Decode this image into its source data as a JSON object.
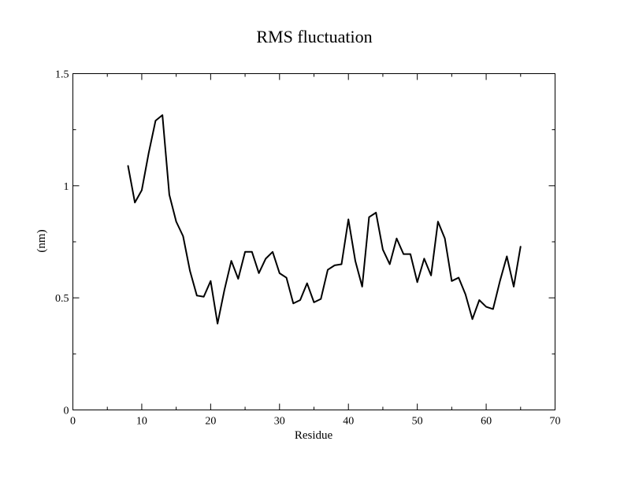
{
  "chart_data": {
    "type": "line",
    "title": "RMS fluctuation",
    "xlabel": "Residue",
    "ylabel": "(nm)",
    "xlim": [
      0,
      70
    ],
    "ylim": [
      0,
      1.5
    ],
    "x_major_ticks": [
      0,
      10,
      20,
      30,
      40,
      50,
      60,
      70
    ],
    "x_tick_labels": [
      "0",
      "10",
      "20",
      "30",
      "40",
      "50",
      "60",
      "70"
    ],
    "x_minor_ticks": [
      5,
      15,
      25,
      35,
      45,
      55,
      65
    ],
    "y_major_ticks": [
      0,
      0.5,
      1,
      1.5
    ],
    "y_tick_labels": [
      "0",
      "0.5",
      "1",
      "1.5"
    ],
    "y_minor_ticks": [
      0.25,
      0.75,
      1.25
    ],
    "grid": false,
    "legend": "none",
    "line_color": "#000000",
    "series": [
      {
        "x": [
          8,
          9,
          10,
          11,
          12,
          13,
          14,
          15,
          16,
          17,
          18,
          19,
          20,
          21,
          22,
          23,
          24,
          25,
          26,
          27,
          28,
          29,
          30,
          31,
          32,
          33,
          34,
          35,
          36,
          37,
          38,
          39,
          40,
          41,
          42,
          43,
          44,
          45,
          46,
          47,
          48,
          49,
          50,
          51,
          52,
          53,
          54,
          55,
          56,
          57,
          58,
          59,
          60,
          61,
          62,
          63,
          64,
          65
        ],
        "values": [
          1.09,
          0.925,
          0.98,
          1.145,
          1.29,
          1.315,
          0.96,
          0.84,
          0.775,
          0.62,
          0.51,
          0.505,
          0.575,
          0.385,
          0.535,
          0.665,
          0.585,
          0.705,
          0.705,
          0.61,
          0.675,
          0.705,
          0.61,
          0.59,
          0.475,
          0.49,
          0.565,
          0.48,
          0.495,
          0.625,
          0.645,
          0.65,
          0.85,
          0.665,
          0.55,
          0.86,
          0.88,
          0.715,
          0.65,
          0.765,
          0.695,
          0.695,
          0.57,
          0.675,
          0.6,
          0.84,
          0.765,
          0.575,
          0.59,
          0.515,
          0.405,
          0.49,
          0.46,
          0.45,
          0.575,
          0.685,
          0.55,
          0.73
        ]
      }
    ]
  }
}
